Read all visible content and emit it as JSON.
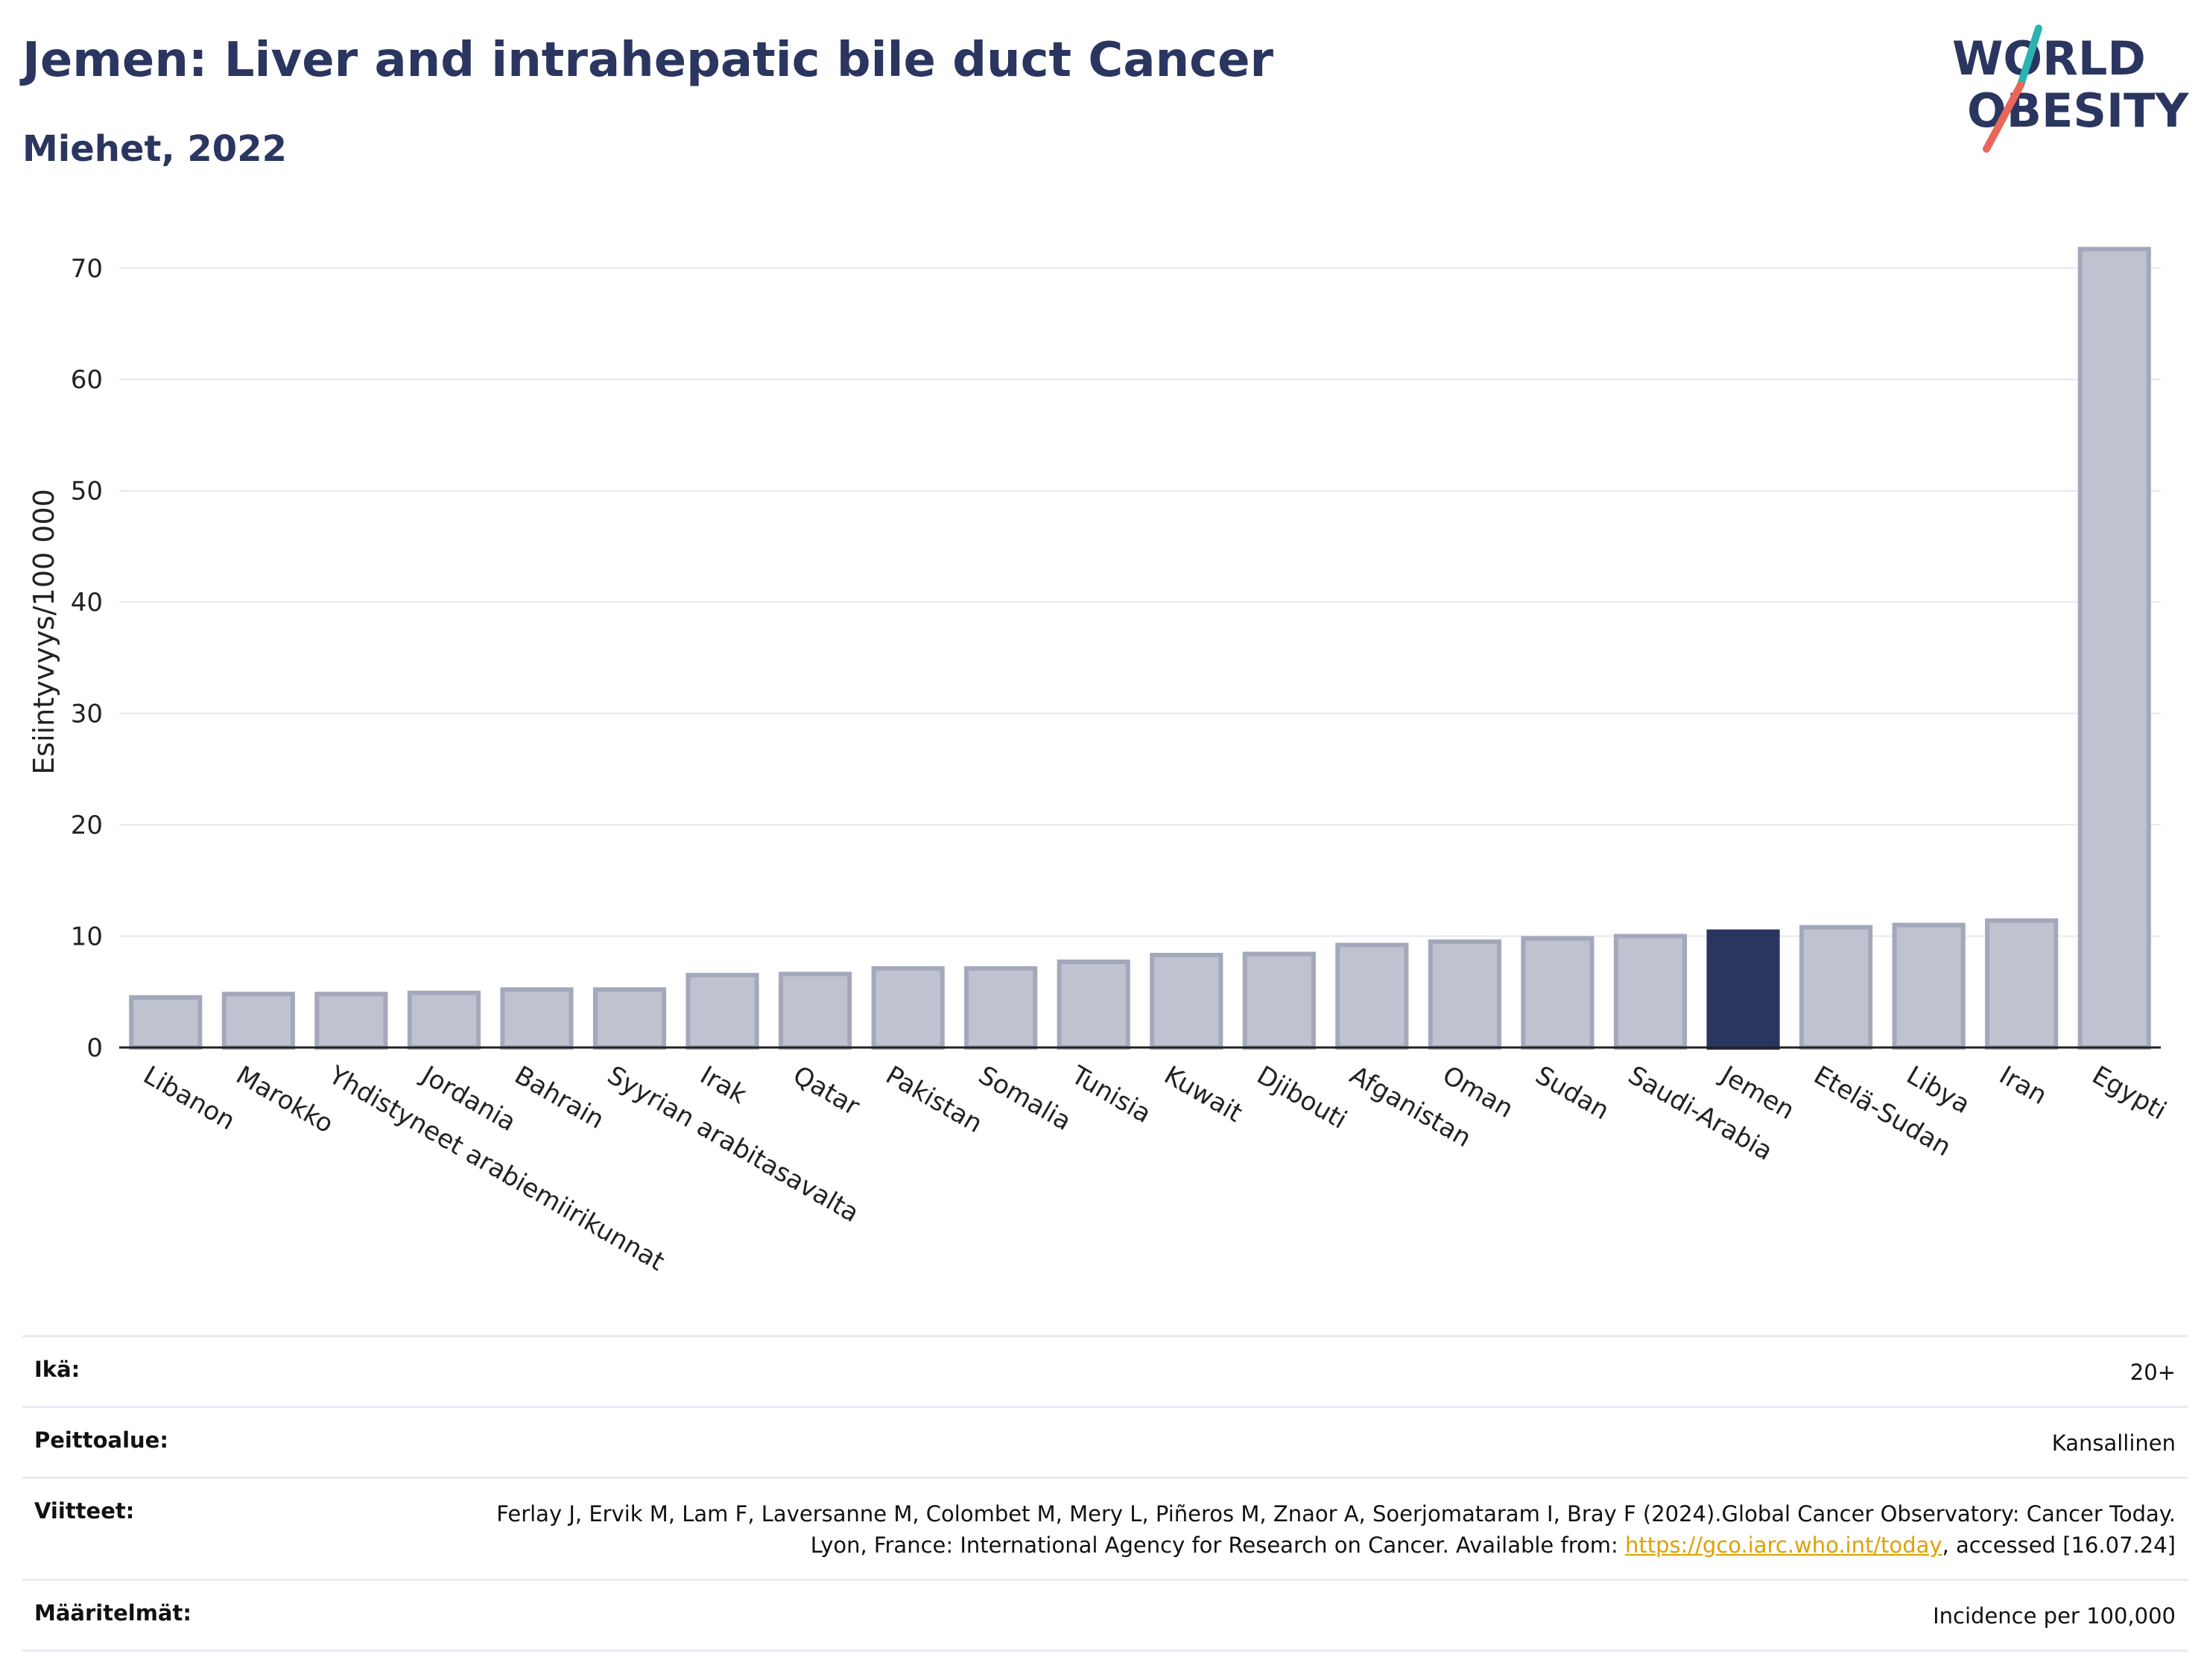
{
  "header": {
    "title": "Jemen: Liver and intrahepatic bile duct Cancer",
    "subtitle": "Miehet, 2022"
  },
  "logo": {
    "line1": "WORLD",
    "line2": "OBESITY",
    "colors": {
      "text": "#2a3560",
      "teal": "#2ab3b1",
      "coral": "#e8675a"
    }
  },
  "chart_data": {
    "type": "bar",
    "ylabel": "Esiintyvyys/100 000",
    "ylim": [
      0,
      74
    ],
    "yticks": [
      0,
      10,
      20,
      30,
      40,
      50,
      60,
      70
    ],
    "grid": true,
    "highlight": "Jemen",
    "colors": {
      "bar": "#bfc3d0",
      "bar_edge": "#a3a8bb",
      "highlight": "#2a3560"
    },
    "categories": [
      "Libanon",
      "Marokko",
      "Yhdistyneet arabiemiirikunnat",
      "Jordania",
      "Bahrain",
      "Syyrian arabitasavalta",
      "Irak",
      "Qatar",
      "Pakistan",
      "Somalia",
      "Tunisia",
      "Kuwait",
      "Djibouti",
      "Afganistan",
      "Oman",
      "Sudan",
      "Saudi-Arabia",
      "Jemen",
      "Etelä-Sudan",
      "Libya",
      "Iran",
      "Egypti"
    ],
    "values": [
      4.5,
      4.8,
      4.8,
      4.9,
      5.2,
      5.2,
      6.5,
      6.6,
      7.1,
      7.1,
      7.7,
      8.3,
      8.4,
      9.2,
      9.5,
      9.8,
      10.0,
      10.4,
      10.8,
      11.0,
      11.4,
      71.7
    ]
  },
  "info": {
    "age_label": "Ikä:",
    "age_value": "20+",
    "coverage_label": "Peittoalue:",
    "coverage_value": "Kansallinen",
    "references_label": "Viitteet:",
    "references_text_1": "Ferlay J, Ervik M, Lam F, Laversanne M, Colombet M, Mery L, Piñeros M, Znaor A, Soerjomataram I, Bray F (2024).Global Cancer Observatory: Cancer Today. Lyon, France: International Agency for Research on Cancer. Available from: ",
    "references_link": "https://gco.iarc.who.int/today",
    "references_text_2": ", accessed [16.07.24]",
    "definitions_label": "Määritelmät:",
    "definitions_value": "Incidence per 100,000"
  }
}
